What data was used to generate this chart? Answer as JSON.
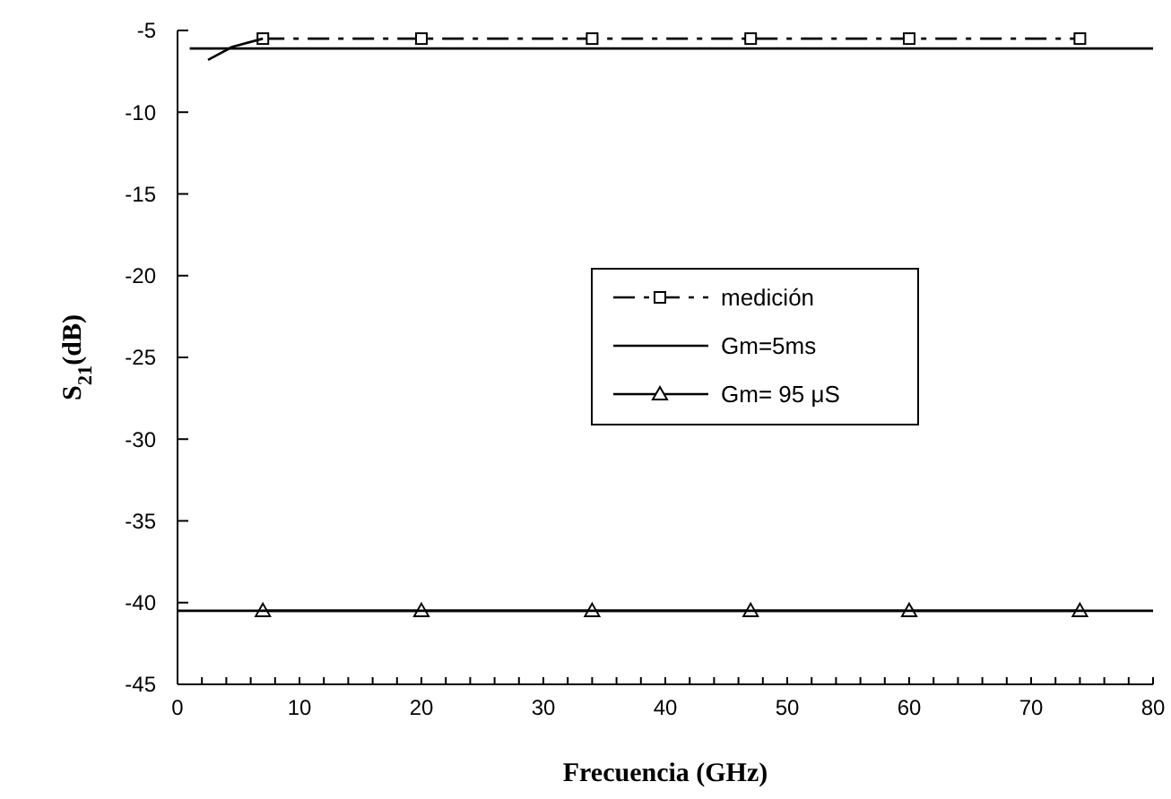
{
  "chart_data": {
    "type": "line",
    "xlabel": "Frecuencia (GHz)",
    "ylabel": "S$_{21}$(dB)",
    "xlim": [
      0,
      80
    ],
    "xticks": [
      0,
      10,
      20,
      30,
      40,
      50,
      60,
      70,
      80
    ],
    "ylim": [
      -45,
      -5
    ],
    "yticks": [
      -45,
      -40,
      -35,
      -30,
      -25,
      -20,
      -15,
      -10,
      -5
    ],
    "grid": false,
    "legend": "center",
    "series": [
      {
        "name": "medición",
        "color": "#000000",
        "marker": "square",
        "line_style": "dashed",
        "x": [
          7,
          20,
          34,
          47,
          60,
          74
        ],
        "values": [
          -5.5,
          -5.5,
          -5.5,
          -5.5,
          -5.5,
          -5.5
        ]
      },
      {
        "color": "#000000",
        "marker": "none",
        "line_style": "solid",
        "x": [
          2.5,
          4.5,
          7
        ],
        "values": [
          -6.8,
          -6,
          -5.5
        ]
      },
      {
        "name": "Gm=5ms",
        "color": "#000000",
        "marker": "none",
        "line_style": "solid",
        "x": [
          1,
          80
        ],
        "values": [
          -6.1,
          -6.1
        ]
      },
      {
        "name": "Gm= 95 μS",
        "color": "#000000",
        "marker": "triangle",
        "line_style": "solid",
        "x": [
          7,
          20,
          34,
          47,
          60,
          74
        ],
        "values": [
          -40.5,
          -40.5,
          -40.5,
          -40.5,
          -40.5,
          -40.5
        ]
      },
      {
        "color": "#000000",
        "marker": "none",
        "line_style": "solid",
        "x": [
          0,
          80
        ],
        "values": [
          -40.5,
          -40.5
        ]
      }
    ]
  }
}
